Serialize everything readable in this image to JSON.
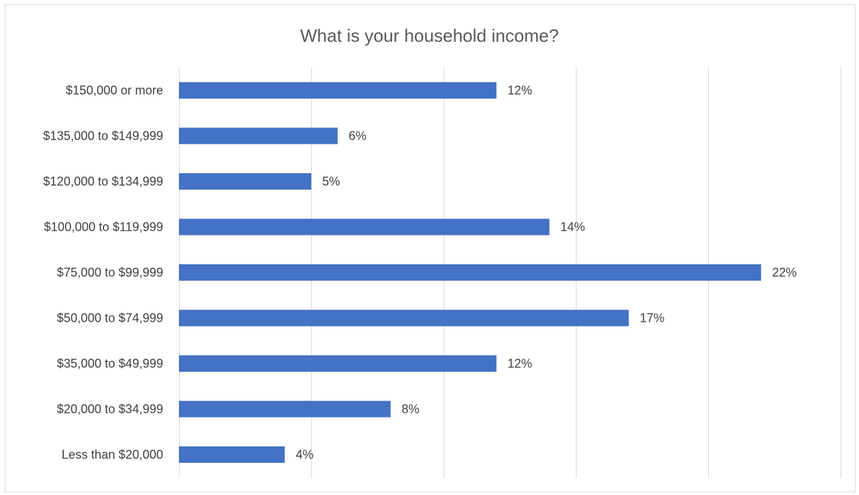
{
  "chart_data": {
    "type": "bar",
    "orientation": "horizontal",
    "title": "What is your household income?",
    "categories": [
      "$150,000 or more ",
      "$135,000 to $149,999",
      "$120,000 to $134,999",
      "$100,000 to $119,999",
      "$75,000 to $99,999",
      "$50,000 to $74,999",
      "$35,000 to $49,999",
      "$20,000 to $34,999",
      "Less than $20,000"
    ],
    "values": [
      12,
      6,
      5,
      14,
      22,
      17,
      12,
      8,
      4
    ],
    "data_labels": [
      "12%",
      "6%",
      "5%",
      "14%",
      "22%",
      "17%",
      "12%",
      "8%",
      "4%"
    ],
    "unit": "%",
    "xlim": [
      0,
      25
    ],
    "gridlines": true,
    "gridline_step": 5,
    "axis_tick_labels_visible": false,
    "legend": "none",
    "colors": {
      "bar": "#4472c4",
      "gridline": "#d9d9d9",
      "text": "#404040",
      "title": "#595959"
    }
  }
}
